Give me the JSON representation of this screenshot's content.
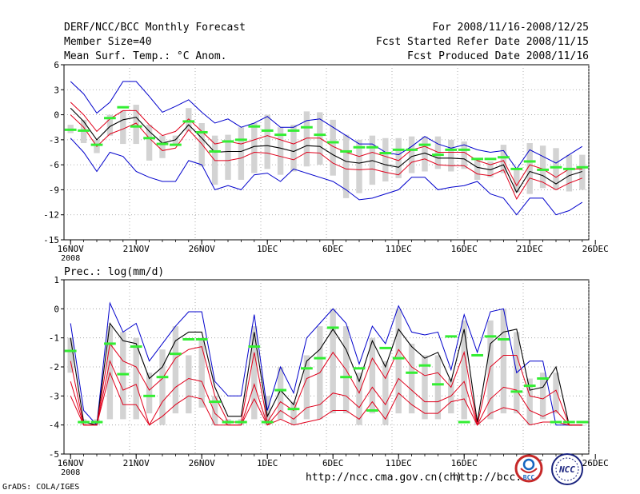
{
  "header": {
    "title": "DERF/NCC/BCC Monthly Forecast",
    "member_size": "Member Size=40",
    "variable": "Mean Surf. Temp.: °C Anom.",
    "period": "For 2008/11/16-2008/12/25",
    "started": "Fcst Started Refer Date 2008/11/15",
    "produced": "Fcst Produced Date 2008/11/16"
  },
  "footer": {
    "url1": "http://ncc.cma.gov.cn(ch)",
    "url2": "http://bcc.c",
    "credit": "GrADS: COLA/IGES",
    "logo_bcc": "BCC",
    "logo_ncc": "NCC"
  },
  "colors": {
    "ensemble_mean": "#000000",
    "spread": "#e0001b",
    "envelope": "#0000cc",
    "bars": "#d3d3d3",
    "observed": "#33ee33"
  },
  "chart_data": [
    {
      "type": "line",
      "title": "Mean Surf. Temp.: °C Anom.",
      "xlabel": "",
      "ylabel": "",
      "x": [
        "16NOV",
        "17NOV",
        "18NOV",
        "19NOV",
        "20NOV",
        "21NOV",
        "22NOV",
        "23NOV",
        "24NOV",
        "25NOV",
        "26NOV",
        "27NOV",
        "28NOV",
        "29NOV",
        "30NOV",
        "1DEC",
        "2DEC",
        "3DEC",
        "4DEC",
        "5DEC",
        "6DEC",
        "7DEC",
        "8DEC",
        "9DEC",
        "10DEC",
        "11DEC",
        "12DEC",
        "13DEC",
        "14DEC",
        "15DEC",
        "16DEC",
        "17DEC",
        "18DEC",
        "19DEC",
        "20DEC",
        "21DEC",
        "22DEC",
        "23DEC",
        "24DEC",
        "25DEC"
      ],
      "x_tick_labels": [
        "16NOV",
        "21NOV",
        "26NOV",
        "1DEC",
        "6DEC",
        "11DEC",
        "16DEC",
        "21DEC",
        "26DEC"
      ],
      "x_sub_label": "2008",
      "ylim": [
        -15,
        6
      ],
      "y_ticks": [
        -15,
        -12,
        -9,
        -6,
        -3,
        0,
        3,
        6
      ],
      "series": [
        {
          "name": "max",
          "color": "#0000cc",
          "values": [
            4,
            2.5,
            0.2,
            1.5,
            4,
            4,
            2.2,
            0.3,
            1,
            1.8,
            0.3,
            -1,
            -0.5,
            -1.5,
            -1,
            -0.2,
            -1.5,
            -1.5,
            -0.7,
            -0.5,
            -1.5,
            -2.5,
            -3.5,
            -3.5,
            -4.5,
            -4.8,
            -3.8,
            -2.6,
            -3.5,
            -4,
            -3.6,
            -4.2,
            -4.5,
            -4.3,
            -6.5,
            -4.2,
            -5,
            -5.8,
            -4.8,
            -3.8
          ]
        },
        {
          "name": "upper",
          "color": "#e0001b",
          "values": [
            1.5,
            0,
            -2,
            -0.5,
            0.5,
            0.5,
            -1.2,
            -2.5,
            -2,
            -0.5,
            -2,
            -3.5,
            -3.2,
            -3.5,
            -3,
            -2.5,
            -3,
            -3.5,
            -2.8,
            -2.8,
            -3.8,
            -4.5,
            -5,
            -4.5,
            -5,
            -5.5,
            -4.2,
            -3.8,
            -4.5,
            -4.5,
            -4.5,
            -5.5,
            -6,
            -5.5,
            -8.5,
            -6,
            -6.5,
            -7.5,
            -6.5,
            -6.5
          ]
        },
        {
          "name": "mean",
          "color": "#000000",
          "values": [
            0.8,
            -0.8,
            -3,
            -1.4,
            -0.6,
            -0.3,
            -2,
            -3.4,
            -3,
            -1.2,
            -2.8,
            -4.5,
            -4.4,
            -4.4,
            -3.8,
            -3.7,
            -4,
            -4.4,
            -3.7,
            -3.8,
            -4.8,
            -5.6,
            -5.8,
            -5.5,
            -6,
            -6.3,
            -5,
            -4.6,
            -5.2,
            -5.2,
            -5.3,
            -6.3,
            -6.6,
            -6,
            -9.3,
            -6.8,
            -7.3,
            -8.3,
            -7.3,
            -6.8
          ]
        },
        {
          "name": "lower",
          "color": "#e0001b",
          "values": [
            0,
            -1.5,
            -3.8,
            -2.3,
            -1.7,
            -1,
            -2.8,
            -4.3,
            -4,
            -1.8,
            -3.5,
            -5.5,
            -5.5,
            -5.2,
            -4.5,
            -4.6,
            -5,
            -5.4,
            -4.5,
            -4.6,
            -5.8,
            -6.5,
            -6.6,
            -6.5,
            -6.9,
            -7.2,
            -5.7,
            -5.3,
            -6,
            -6.1,
            -6.1,
            -7.1,
            -7.3,
            -6.6,
            -10.1,
            -7.6,
            -8.1,
            -9,
            -8.2,
            -7.6
          ]
        },
        {
          "name": "min",
          "color": "#0000cc",
          "values": [
            -2.8,
            -4.5,
            -6.8,
            -4.5,
            -5,
            -6.8,
            -7.5,
            -8,
            -8,
            -5.5,
            -6,
            -9,
            -8.5,
            -9,
            -7.2,
            -7,
            -8,
            -6.5,
            -7,
            -7.5,
            -8,
            -9,
            -10.2,
            -10,
            -9.5,
            -9,
            -7.5,
            -7.5,
            -9,
            -8.7,
            -8.5,
            -8,
            -9.5,
            -10,
            -12,
            -10,
            -10,
            -12,
            -11.5,
            -10.5
          ]
        }
      ],
      "bars": {
        "name": "ensemble range",
        "low": [
          -2.2,
          -3.4,
          -4.6,
          -2.5,
          -3.5,
          -3.5,
          -5.5,
          -5.2,
          -3.7,
          -2,
          -6.2,
          -8.4,
          -7.8,
          -7.8,
          -7,
          -6.5,
          -7.2,
          -6.8,
          -6.2,
          -6,
          -7.3,
          -10,
          -9.4,
          -8.4,
          -8,
          -7.6,
          -7,
          -6.8,
          -6.5,
          -6.8,
          -6.5,
          -7.8,
          -7.5,
          -7,
          -9.3,
          -9.5,
          -8.8,
          -9,
          -9.2,
          -9
        ],
        "high": [
          -1.2,
          -0.6,
          -3,
          0,
          0.5,
          1.2,
          -1.2,
          -2.5,
          -2.5,
          0.8,
          -1,
          -2.5,
          -2.4,
          -1.5,
          -1,
          0,
          -1.5,
          -1.2,
          0.4,
          0.3,
          -0.6,
          -2.4,
          -3,
          -2.5,
          -2.8,
          -2.8,
          -2.6,
          -2.6,
          -2.6,
          -3,
          -3.2,
          -5.4,
          -5.6,
          -3.6,
          -6.5,
          -3.4,
          -3.7,
          -4,
          -4.8,
          -4.8
        ]
      },
      "observed": {
        "name": "observed",
        "values": [
          -1.8,
          -1.9,
          -3.6,
          -0.4,
          0.9,
          -1.4,
          -2.8,
          -3.5,
          -3.6,
          -0.8,
          -2.1,
          -4.4,
          -3.2,
          -3,
          -1.4,
          -1.9,
          -2.4,
          -1.9,
          -1.5,
          -2.4,
          -3.3,
          -4.4,
          -3.9,
          -3.9,
          -4.6,
          -4.2,
          -4.2,
          -3.6,
          -4.8,
          -4.2,
          -4.2,
          -5.3,
          -5.3,
          -5.1,
          -6.5,
          -5.6,
          -6.6,
          -6.3,
          -6.5,
          -6.3
        ]
      }
    },
    {
      "type": "line",
      "title": "Prec.: log(mm/d)",
      "xlabel": "",
      "ylabel": "",
      "x": [
        "16NOV",
        "17NOV",
        "18NOV",
        "19NOV",
        "20NOV",
        "21NOV",
        "22NOV",
        "23NOV",
        "24NOV",
        "25NOV",
        "26NOV",
        "27NOV",
        "28NOV",
        "29NOV",
        "30NOV",
        "1DEC",
        "2DEC",
        "3DEC",
        "4DEC",
        "5DEC",
        "6DEC",
        "7DEC",
        "8DEC",
        "9DEC",
        "10DEC",
        "11DEC",
        "12DEC",
        "13DEC",
        "14DEC",
        "15DEC",
        "16DEC",
        "17DEC",
        "18DEC",
        "19DEC",
        "20DEC",
        "21DEC",
        "22DEC",
        "23DEC",
        "24DEC",
        "25DEC"
      ],
      "x_tick_labels": [
        "16NOV",
        "21NOV",
        "26NOV",
        "1DEC",
        "6DEC",
        "11DEC",
        "16DEC",
        "21DEC",
        "26DEC"
      ],
      "x_sub_label": "2008",
      "ylim": [
        -5,
        1
      ],
      "y_ticks": [
        -5,
        -4,
        -3,
        -2,
        -1,
        0,
        1
      ],
      "series": [
        {
          "name": "max",
          "color": "#0000cc",
          "values": [
            -0.5,
            -3.5,
            -4,
            0.2,
            -0.8,
            -0.5,
            -1.8,
            -1.2,
            -0.6,
            -0.1,
            -0.1,
            -2.5,
            -3,
            -3,
            -0.2,
            -3.5,
            -2,
            -2.9,
            -1,
            -0.5,
            0,
            -0.5,
            -1.9,
            -0.6,
            -1.2,
            0.1,
            -0.8,
            -0.9,
            -0.8,
            -2.1,
            -0.2,
            -1.5,
            -0.1,
            0,
            -2.2,
            -1.8,
            -1.8,
            -4,
            -4,
            -4
          ]
        },
        {
          "name": "mean",
          "color": "#000000",
          "values": [
            -1,
            -3.9,
            -4,
            -0.5,
            -1.1,
            -1.2,
            -2.4,
            -2,
            -1.1,
            -0.8,
            -0.8,
            -2.7,
            -3.7,
            -3.7,
            -0.8,
            -3.7,
            -2.8,
            -3.3,
            -1.8,
            -1.4,
            -0.7,
            -1.4,
            -2.5,
            -1.1,
            -2,
            -0.7,
            -1.3,
            -1.7,
            -1.5,
            -2.5,
            -0.7,
            -3.9,
            -1.2,
            -0.8,
            -0.7,
            -2.8,
            -2.7,
            -2,
            -4,
            -4
          ]
        },
        {
          "name": "upper",
          "color": "#e0001b",
          "values": [
            -1.8,
            -4,
            -4,
            -1.2,
            -1.8,
            -2,
            -2.8,
            -2.4,
            -1.7,
            -1.4,
            -1.3,
            -3,
            -3.9,
            -3.9,
            -1.5,
            -3.9,
            -3.2,
            -3.5,
            -2.4,
            -2.2,
            -1.5,
            -2.1,
            -2.9,
            -1.7,
            -2.4,
            -1.4,
            -2,
            -2.3,
            -2.2,
            -2.7,
            -1.5,
            -4,
            -2,
            -1.6,
            -1.6,
            -3,
            -3.1,
            -2.8,
            -4,
            -4
          ]
        },
        {
          "name": "lower",
          "color": "#e0001b",
          "values": [
            -2.5,
            -4,
            -4,
            -1.8,
            -2.8,
            -2.6,
            -4,
            -3.2,
            -2.7,
            -2.4,
            -2.5,
            -3.6,
            -4,
            -4,
            -2.6,
            -4,
            -3.5,
            -3.8,
            -3.4,
            -3.3,
            -2.9,
            -3,
            -3.4,
            -2.7,
            -3.3,
            -2.4,
            -2.8,
            -3.2,
            -3.2,
            -3,
            -2.5,
            -4,
            -3.1,
            -2.7,
            -2.8,
            -3.5,
            -3.7,
            -3.5,
            -4,
            -4
          ]
        },
        {
          "name": "min",
          "color": "#e0001b",
          "values": [
            -3,
            -4,
            -4,
            -2.2,
            -3.3,
            -3.3,
            -4,
            -3.7,
            -3.3,
            -3,
            -3.1,
            -4,
            -4,
            -4,
            -3.1,
            -4,
            -3.8,
            -4,
            -3.9,
            -3.8,
            -3.5,
            -3.5,
            -3.8,
            -3.2,
            -3.8,
            -2.9,
            -3.3,
            -3.6,
            -3.6,
            -3.2,
            -3.1,
            -4,
            -3.6,
            -3.4,
            -3.5,
            -4,
            -3.9,
            -3.9,
            -4,
            -4
          ]
        }
      ],
      "bars": {
        "name": "ensemble range",
        "low": [
          -2.2,
          -4,
          -4,
          -3.8,
          -3.8,
          -3.8,
          -3.6,
          -4,
          -3.6,
          -3.6,
          -3.4,
          -4,
          -4,
          -4,
          -3.8,
          -4,
          -3.8,
          -4,
          -3.8,
          -3.8,
          -3.6,
          -3.6,
          -4,
          -3.6,
          -4,
          -3.6,
          -3.6,
          -3.8,
          -3.8,
          -3.6,
          -3.8,
          -4,
          -3.8,
          -3.6,
          -3.6,
          -4,
          -3.8,
          -3.6,
          -4,
          -4
        ],
        "high": [
          -1,
          -3.8,
          -3.8,
          -0.6,
          -0.8,
          -1,
          -2.2,
          -1.4,
          -0.6,
          -1.6,
          -1,
          -3,
          -3.8,
          -3.8,
          -0.6,
          -3,
          -2,
          -3.2,
          -1.6,
          -0.6,
          0,
          -0.6,
          -2.2,
          -1,
          -1.8,
          0,
          -1.2,
          -1.6,
          -1.6,
          -2.4,
          -0.4,
          -3.8,
          -0.4,
          0,
          -0.8,
          -2.4,
          -2.2,
          -2.2,
          -4,
          -4
        ]
      },
      "observed": {
        "name": "observed",
        "values": [
          -1.45,
          -3.9,
          -3.9,
          -1.2,
          -2.25,
          -1.3,
          -3,
          -2.35,
          -1.55,
          -1.05,
          -1.05,
          -3.2,
          -3.9,
          -3.9,
          -1.3,
          -3.9,
          -2.8,
          -3.45,
          -2.05,
          -1.7,
          -0.65,
          -2.35,
          -2.05,
          -3.5,
          -1.35,
          -1.7,
          -2.2,
          -1.95,
          -2.6,
          -0.95,
          -3.9,
          -1.6,
          -0.95,
          -1.05,
          -2.85,
          -2.65,
          -2.4,
          -3.9,
          -3.9,
          -3.9
        ]
      }
    }
  ]
}
